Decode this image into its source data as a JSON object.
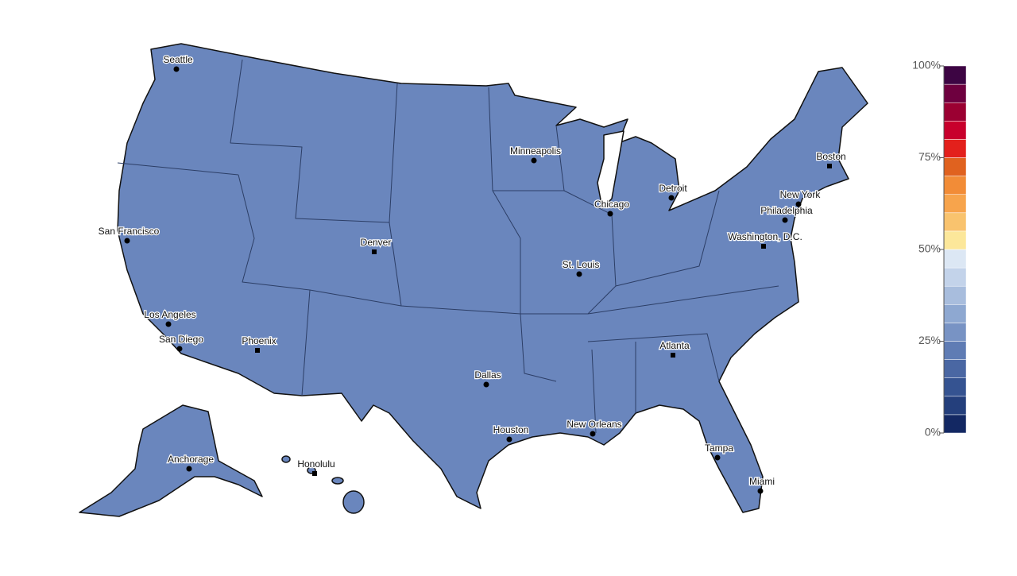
{
  "map": {
    "fill": "#6a86bd",
    "cities": [
      "Seattle",
      "San Francisco",
      "Los Angeles",
      "San Diego",
      "Phoenix",
      "Denver",
      "Minneapolis",
      "Chicago",
      "Detroit",
      "St. Louis",
      "Dallas",
      "Houston",
      "New Orleans",
      "Atlanta",
      "Tampa",
      "Miami",
      "Washington, D.C.",
      "Philadelphia",
      "New York",
      "Boston",
      "Anchorage",
      "Honolulu"
    ]
  },
  "legend": {
    "lim": [
      0,
      100
    ],
    "ticks": [
      {
        "value": 0,
        "label": "0%"
      },
      {
        "value": 25,
        "label": "25%"
      },
      {
        "value": 50,
        "label": "50%"
      },
      {
        "value": 75,
        "label": "75%"
      },
      {
        "value": 100,
        "label": "100%"
      }
    ],
    "colors": [
      "#132863",
      "#243f7c",
      "#355391",
      "#4a67a3",
      "#5f7cb4",
      "#7893c4",
      "#8ea8d1",
      "#a8bddd",
      "#c3d3ea",
      "#dce7f4",
      "#fce79a",
      "#f9c36e",
      "#f7a44c",
      "#f28c37",
      "#e0621f",
      "#e3201c",
      "#c8002c",
      "#9b0032",
      "#6e003f",
      "#3d0543"
    ]
  }
}
